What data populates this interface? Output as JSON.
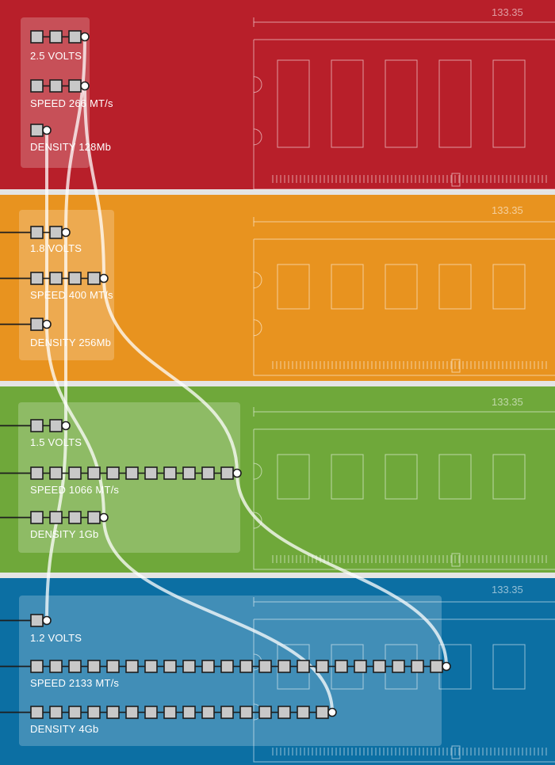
{
  "colors": {
    "ddr1": "#b81f2a",
    "ddr2": "#e8931f",
    "ddr3": "#6fa83a",
    "ddr4": "#0c6fa3",
    "separator": "#e4e4e4",
    "square_fill": "#c8c8c8",
    "line": "#ffffff"
  },
  "panels": [
    {
      "id": "ddr1",
      "dimension": "133.35",
      "metrics": [
        {
          "label": "2.5 VOLTS",
          "squares": 3
        },
        {
          "label": "SPEED 266 MT/s",
          "squares": 3
        },
        {
          "label": "DENSITY  128Mb",
          "squares": 1
        }
      ]
    },
    {
      "id": "ddr2",
      "dimension": "133.35",
      "metrics": [
        {
          "label": "1.8 VOLTS",
          "squares": 2
        },
        {
          "label": "SPEED 400 MT/s",
          "squares": 4
        },
        {
          "label": "DENSITY  256Mb",
          "squares": 1
        }
      ]
    },
    {
      "id": "ddr3",
      "dimension": "133.35",
      "metrics": [
        {
          "label": "1.5 VOLTS",
          "squares": 2
        },
        {
          "label": "SPEED 1066 MT/s",
          "squares": 11
        },
        {
          "label": "DENSITY  1Gb",
          "squares": 4
        }
      ]
    },
    {
      "id": "ddr4",
      "dimension": "133.35",
      "metrics": [
        {
          "label": "1.2 VOLTS",
          "squares": 1
        },
        {
          "label": "SPEED 2133 MT/s",
          "squares": 22
        },
        {
          "label": "DENSITY  4Gb",
          "squares": 16
        }
      ]
    }
  ],
  "connectors": [
    {
      "metric": "volts",
      "from_panel": "ddr1",
      "to_panel": "ddr4"
    },
    {
      "metric": "speed",
      "from_panel": "ddr1",
      "to_panel": "ddr4"
    },
    {
      "metric": "density",
      "from_panel": "ddr1",
      "to_panel": "ddr4"
    }
  ]
}
